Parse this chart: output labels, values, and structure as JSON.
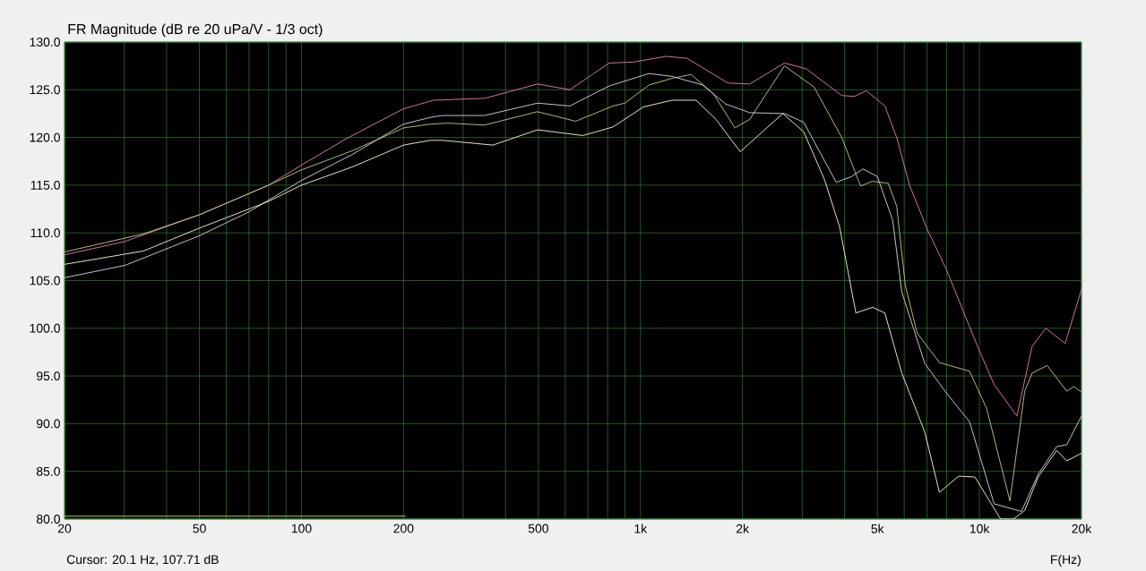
{
  "chart_data": {
    "type": "line",
    "title": "FR Magnitude (dB re 20 uPa/V - 1/3 oct)",
    "xlabel": "F(Hz)",
    "annotations": [
      "Cursor: 20.1 Hz, 107.71 dB"
    ],
    "log": "x",
    "grid": true,
    "marker": "none",
    "xlim": [
      20,
      20000
    ],
    "ylim": [
      80,
      130
    ],
    "xticks": [
      20,
      {
        "value": 30,
        "label": null
      },
      {
        "value": 40,
        "label": null
      },
      50,
      {
        "value": 60,
        "label": null
      },
      {
        "value": 70,
        "label": null
      },
      {
        "value": 80,
        "label": null
      },
      {
        "value": 90,
        "label": null
      },
      100,
      200,
      {
        "value": 300,
        "label": null
      },
      {
        "value": 400,
        "label": null
      },
      500,
      {
        "value": 600,
        "label": null
      },
      {
        "value": 700,
        "label": null
      },
      {
        "value": 800,
        "label": null
      },
      {
        "value": 900,
        "label": null
      },
      {
        "value": 1000,
        "label": "1k"
      },
      {
        "value": 2000,
        "label": "2k"
      },
      {
        "value": 3000,
        "label": null
      },
      {
        "value": 4000,
        "label": null
      },
      {
        "value": 5000,
        "label": "5k"
      },
      {
        "value": 6000,
        "label": null
      },
      {
        "value": 7000,
        "label": null
      },
      {
        "value": 8000,
        "label": null
      },
      {
        "value": 9000,
        "label": null
      },
      {
        "value": 10000,
        "label": "10k"
      },
      {
        "value": 20000,
        "label": "20k"
      }
    ],
    "yticks": [
      {
        "value": 80,
        "label": "80.0"
      },
      {
        "value": 85,
        "label": "85.0"
      },
      {
        "value": 90,
        "label": "90.0"
      },
      {
        "value": 95,
        "label": "95.0"
      },
      {
        "value": 100,
        "label": "100.0"
      },
      {
        "value": 105,
        "label": "105.0"
      },
      {
        "value": 110,
        "label": "110.0"
      },
      {
        "value": 115,
        "label": "115.0"
      },
      {
        "value": 120,
        "label": "120.0"
      },
      {
        "value": 125,
        "label": "125.0"
      },
      {
        "value": 130,
        "label": "130.0"
      }
    ],
    "series": [
      {
        "color": "#e882b4",
        "x": [
          20,
          30.2,
          50,
          80,
          100,
          136,
          200,
          245,
          347,
          497,
          619,
          809,
          952,
          1191,
          1370,
          1813,
          2100,
          2660,
          3080,
          3925,
          4280,
          4640,
          5260,
          5700,
          6220,
          7030,
          7960,
          9950,
          11050,
          12900,
          14300,
          15700,
          17900,
          20000
        ],
        "values": [
          107.7,
          109.1,
          111.9,
          115.0,
          117.1,
          119.9,
          123.0,
          123.9,
          124.1,
          125.6,
          125.0,
          127.8,
          127.9,
          128.5,
          128.3,
          125.7,
          125.6,
          127.8,
          127.2,
          124.4,
          124.3,
          124.9,
          123.3,
          120.0,
          115.0,
          110.3,
          106.3,
          97.8,
          94.1,
          90.8,
          98.1,
          100.0,
          98.4,
          104.1
        ]
      },
      {
        "color": "#c8cc88",
        "x": [
          20,
          34.2,
          50,
          80,
          100,
          141,
          200,
          240,
          270,
          347,
          497,
          644,
          830,
          900,
          1060,
          1240,
          1410,
          1640,
          1900,
          2100,
          2660,
          3250,
          3925,
          4460,
          4820,
          5380,
          5700,
          6050,
          6550,
          7620,
          9350,
          10500,
          12300,
          13600,
          14300,
          15850,
          18100,
          19000,
          20000
        ],
        "values": [
          108.0,
          109.9,
          111.9,
          115.0,
          116.6,
          118.6,
          121.0,
          121.4,
          121.5,
          121.3,
          122.7,
          121.7,
          123.3,
          123.6,
          125.5,
          126.2,
          126.6,
          124.6,
          121.0,
          121.9,
          127.5,
          125.3,
          120.0,
          114.9,
          115.4,
          115.2,
          112.8,
          104.4,
          99.5,
          96.4,
          95.5,
          91.6,
          81.9,
          93.4,
          95.3,
          96.1,
          93.4,
          93.9,
          93.3
        ]
      },
      {
        "color": "#d8d8e8",
        "x": [
          20,
          30.2,
          50,
          70,
          100,
          141,
          200,
          240,
          260,
          347,
          497,
          619,
          809,
          1060,
          1240,
          1525,
          1785,
          2100,
          2660,
          3030,
          3780,
          4200,
          4530,
          5000,
          5550,
          5900,
          6900,
          7960,
          9350,
          11050,
          13300,
          14900,
          16900,
          18100,
          20000
        ],
        "values": [
          105.3,
          106.6,
          109.7,
          112.2,
          115.5,
          118.2,
          121.4,
          122.1,
          122.3,
          122.3,
          123.6,
          123.3,
          125.4,
          126.7,
          126.4,
          125.5,
          123.5,
          122.6,
          122.5,
          121.6,
          115.3,
          115.9,
          116.7,
          115.9,
          111.3,
          103.8,
          96.3,
          93.3,
          90.2,
          81.6,
          80.8,
          84.7,
          87.6,
          87.8,
          90.8
        ]
      },
      {
        "color": "#fffad8",
        "x": [
          20,
          34.2,
          50,
          80,
          100,
          141,
          200,
          240,
          260,
          367,
          497,
          676,
          830,
          1020,
          1240,
          1460,
          1670,
          1970,
          2290,
          2630,
          3030,
          3490,
          3870,
          4320,
          4840,
          5260,
          5900,
          6900,
          7620,
          8680,
          9700,
          11550,
          12600,
          13600,
          14900,
          16900,
          18100,
          20000
        ],
        "values": [
          106.7,
          108.1,
          110.5,
          113.3,
          115.0,
          116.9,
          119.2,
          119.7,
          119.7,
          119.2,
          120.8,
          120.2,
          121.1,
          123.2,
          123.9,
          123.9,
          121.9,
          118.5,
          120.6,
          122.5,
          120.6,
          115.6,
          110.6,
          101.6,
          102.2,
          101.6,
          95.3,
          89.1,
          82.8,
          84.5,
          84.4,
          80.0,
          80.0,
          80.9,
          84.4,
          87.2,
          86.1,
          86.9
        ]
      },
      {
        "color": "#d8d870",
        "x": [
          20,
          203
        ],
        "values": [
          80.3,
          80.3
        ]
      }
    ]
  }
}
